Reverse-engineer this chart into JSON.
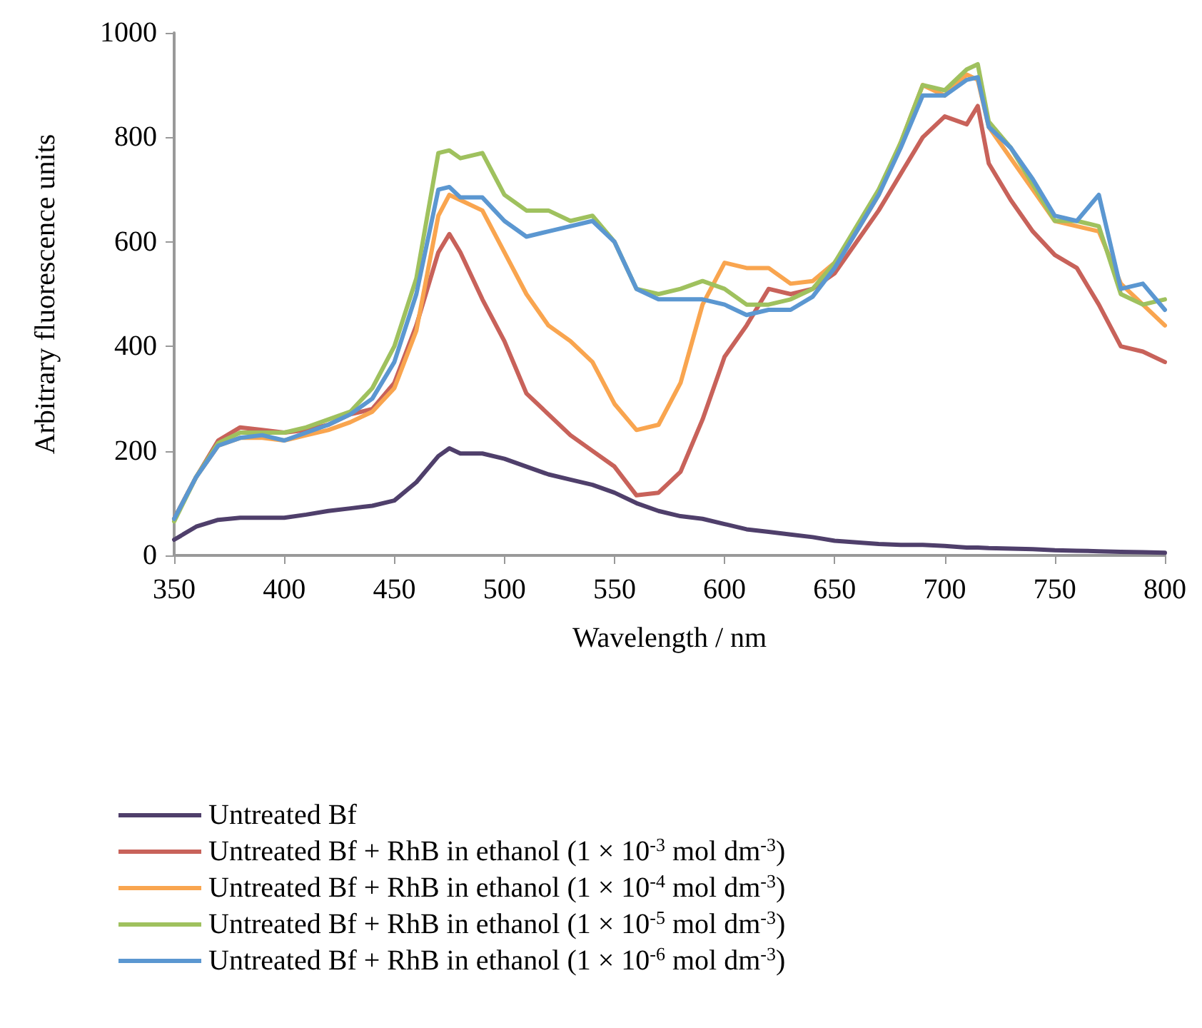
{
  "chart_data": {
    "type": "line",
    "xlabel": "Wavelength / nm",
    "ylabel": "Arbitrary fluorescence units",
    "x": [
      350,
      360,
      370,
      380,
      390,
      400,
      410,
      420,
      430,
      440,
      450,
      460,
      470,
      475,
      480,
      490,
      500,
      510,
      520,
      530,
      540,
      550,
      560,
      570,
      580,
      590,
      600,
      610,
      620,
      630,
      640,
      650,
      660,
      670,
      680,
      690,
      700,
      710,
      715,
      720,
      730,
      740,
      750,
      760,
      770,
      780,
      790,
      800
    ],
    "series": [
      {
        "name": "Untreated Bf",
        "color": "#4f3f6b",
        "values": [
          30,
          55,
          68,
          72,
          72,
          72,
          78,
          85,
          90,
          95,
          105,
          140,
          190,
          205,
          195,
          195,
          185,
          170,
          155,
          145,
          135,
          120,
          100,
          85,
          75,
          70,
          60,
          50,
          45,
          40,
          35,
          28,
          25,
          22,
          20,
          20,
          18,
          15,
          15,
          14,
          13,
          12,
          10,
          9,
          8,
          7,
          6,
          5
        ]
      },
      {
        "name": "Untreated Bf + RhB in ethanol (1 × 10$^{-3}$ mol dm$^{-3}$)",
        "color": "#c8625a",
        "values": [
          70,
          150,
          220,
          245,
          240,
          235,
          240,
          250,
          270,
          280,
          330,
          440,
          580,
          615,
          580,
          490,
          410,
          310,
          270,
          230,
          200,
          170,
          115,
          120,
          160,
          260,
          380,
          440,
          510,
          500,
          510,
          540,
          600,
          660,
          730,
          800,
          840,
          825,
          860,
          750,
          680,
          620,
          575,
          550,
          480,
          400,
          390,
          370
        ]
      },
      {
        "name": "Untreated Bf + RhB in ethanol (1 × 10$^{-4}$ mol dm$^{-3}$)",
        "color": "#f9a54f",
        "values": [
          70,
          150,
          210,
          225,
          225,
          220,
          230,
          240,
          255,
          275,
          320,
          430,
          650,
          690,
          680,
          660,
          580,
          500,
          440,
          410,
          370,
          290,
          240,
          250,
          330,
          480,
          560,
          550,
          550,
          520,
          525,
          560,
          620,
          690,
          790,
          900,
          880,
          920,
          910,
          820,
          760,
          700,
          640,
          630,
          620,
          520,
          480,
          440
        ]
      },
      {
        "name": "Untreated Bf + RhB in ethanol (1 × 10$^{-5}$ mol dm$^{-3}$)",
        "color": "#9fc15e",
        "values": [
          65,
          150,
          215,
          235,
          235,
          235,
          245,
          260,
          275,
          320,
          400,
          530,
          770,
          775,
          760,
          770,
          690,
          660,
          660,
          640,
          650,
          600,
          510,
          500,
          510,
          525,
          510,
          480,
          480,
          490,
          510,
          560,
          630,
          700,
          790,
          900,
          890,
          930,
          940,
          830,
          780,
          710,
          640,
          640,
          630,
          500,
          480,
          490
        ]
      },
      {
        "name": "Untreated Bf + RhB in ethanol (1 × 10$^{-6}$ mol dm$^{-3}$)",
        "color": "#5b97d1",
        "values": [
          70,
          150,
          210,
          225,
          230,
          220,
          235,
          250,
          270,
          300,
          370,
          500,
          700,
          705,
          685,
          685,
          640,
          610,
          620,
          630,
          640,
          600,
          510,
          490,
          490,
          490,
          480,
          460,
          470,
          470,
          495,
          550,
          620,
          690,
          780,
          880,
          880,
          910,
          915,
          820,
          780,
          720,
          650,
          640,
          690,
          510,
          520,
          470
        ]
      }
    ],
    "xlim": [
      350,
      800
    ],
    "xticks": [
      350,
      400,
      450,
      500,
      550,
      600,
      650,
      700,
      750,
      800
    ],
    "ylim": [
      0,
      1000
    ],
    "yticks": [
      0,
      200,
      400,
      600,
      800,
      1000
    ],
    "grid": false,
    "legend": "bottom",
    "marker": "none",
    "line_style": "solid"
  }
}
